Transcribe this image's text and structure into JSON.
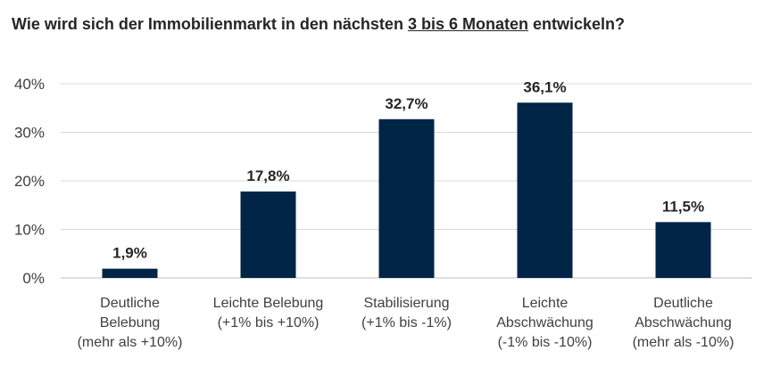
{
  "title": {
    "before": "Wie wird sich der Immobilienmarkt in den nächsten ",
    "underlined": "3 bis 6 Monaten",
    "after": " entwickeln?"
  },
  "colors": {
    "bar": "#012547",
    "grid": "#d9d9d9",
    "axis": "#bfbfbf"
  },
  "chart_data": {
    "type": "bar",
    "title": "Wie wird sich der Immobilienmarkt in den nächsten 3 bis 6 Monaten entwickeln?",
    "categories": [
      [
        "Deutliche",
        "Belebung",
        "(mehr als +10%)"
      ],
      [
        "Leichte Belebung",
        "(+1% bis +10%)"
      ],
      [
        "Stabilisierung",
        "(+1% bis -1%)"
      ],
      [
        "Leichte",
        "Abschwächung",
        "(-1% bis -10%)"
      ],
      [
        "Deutliche",
        "Abschwächung",
        "(mehr als -10%)"
      ]
    ],
    "values": [
      1.9,
      17.8,
      32.7,
      36.1,
      11.5
    ],
    "data_labels": [
      "1,9%",
      "17,8%",
      "32,7%",
      "36,1%",
      "11,5%"
    ],
    "ylim": [
      0,
      40
    ],
    "yticks": [
      0,
      10,
      20,
      30,
      40
    ],
    "ytick_labels": [
      "0%",
      "10%",
      "20%",
      "30%",
      "40%"
    ],
    "grid": true,
    "xlabel": "",
    "ylabel": ""
  }
}
